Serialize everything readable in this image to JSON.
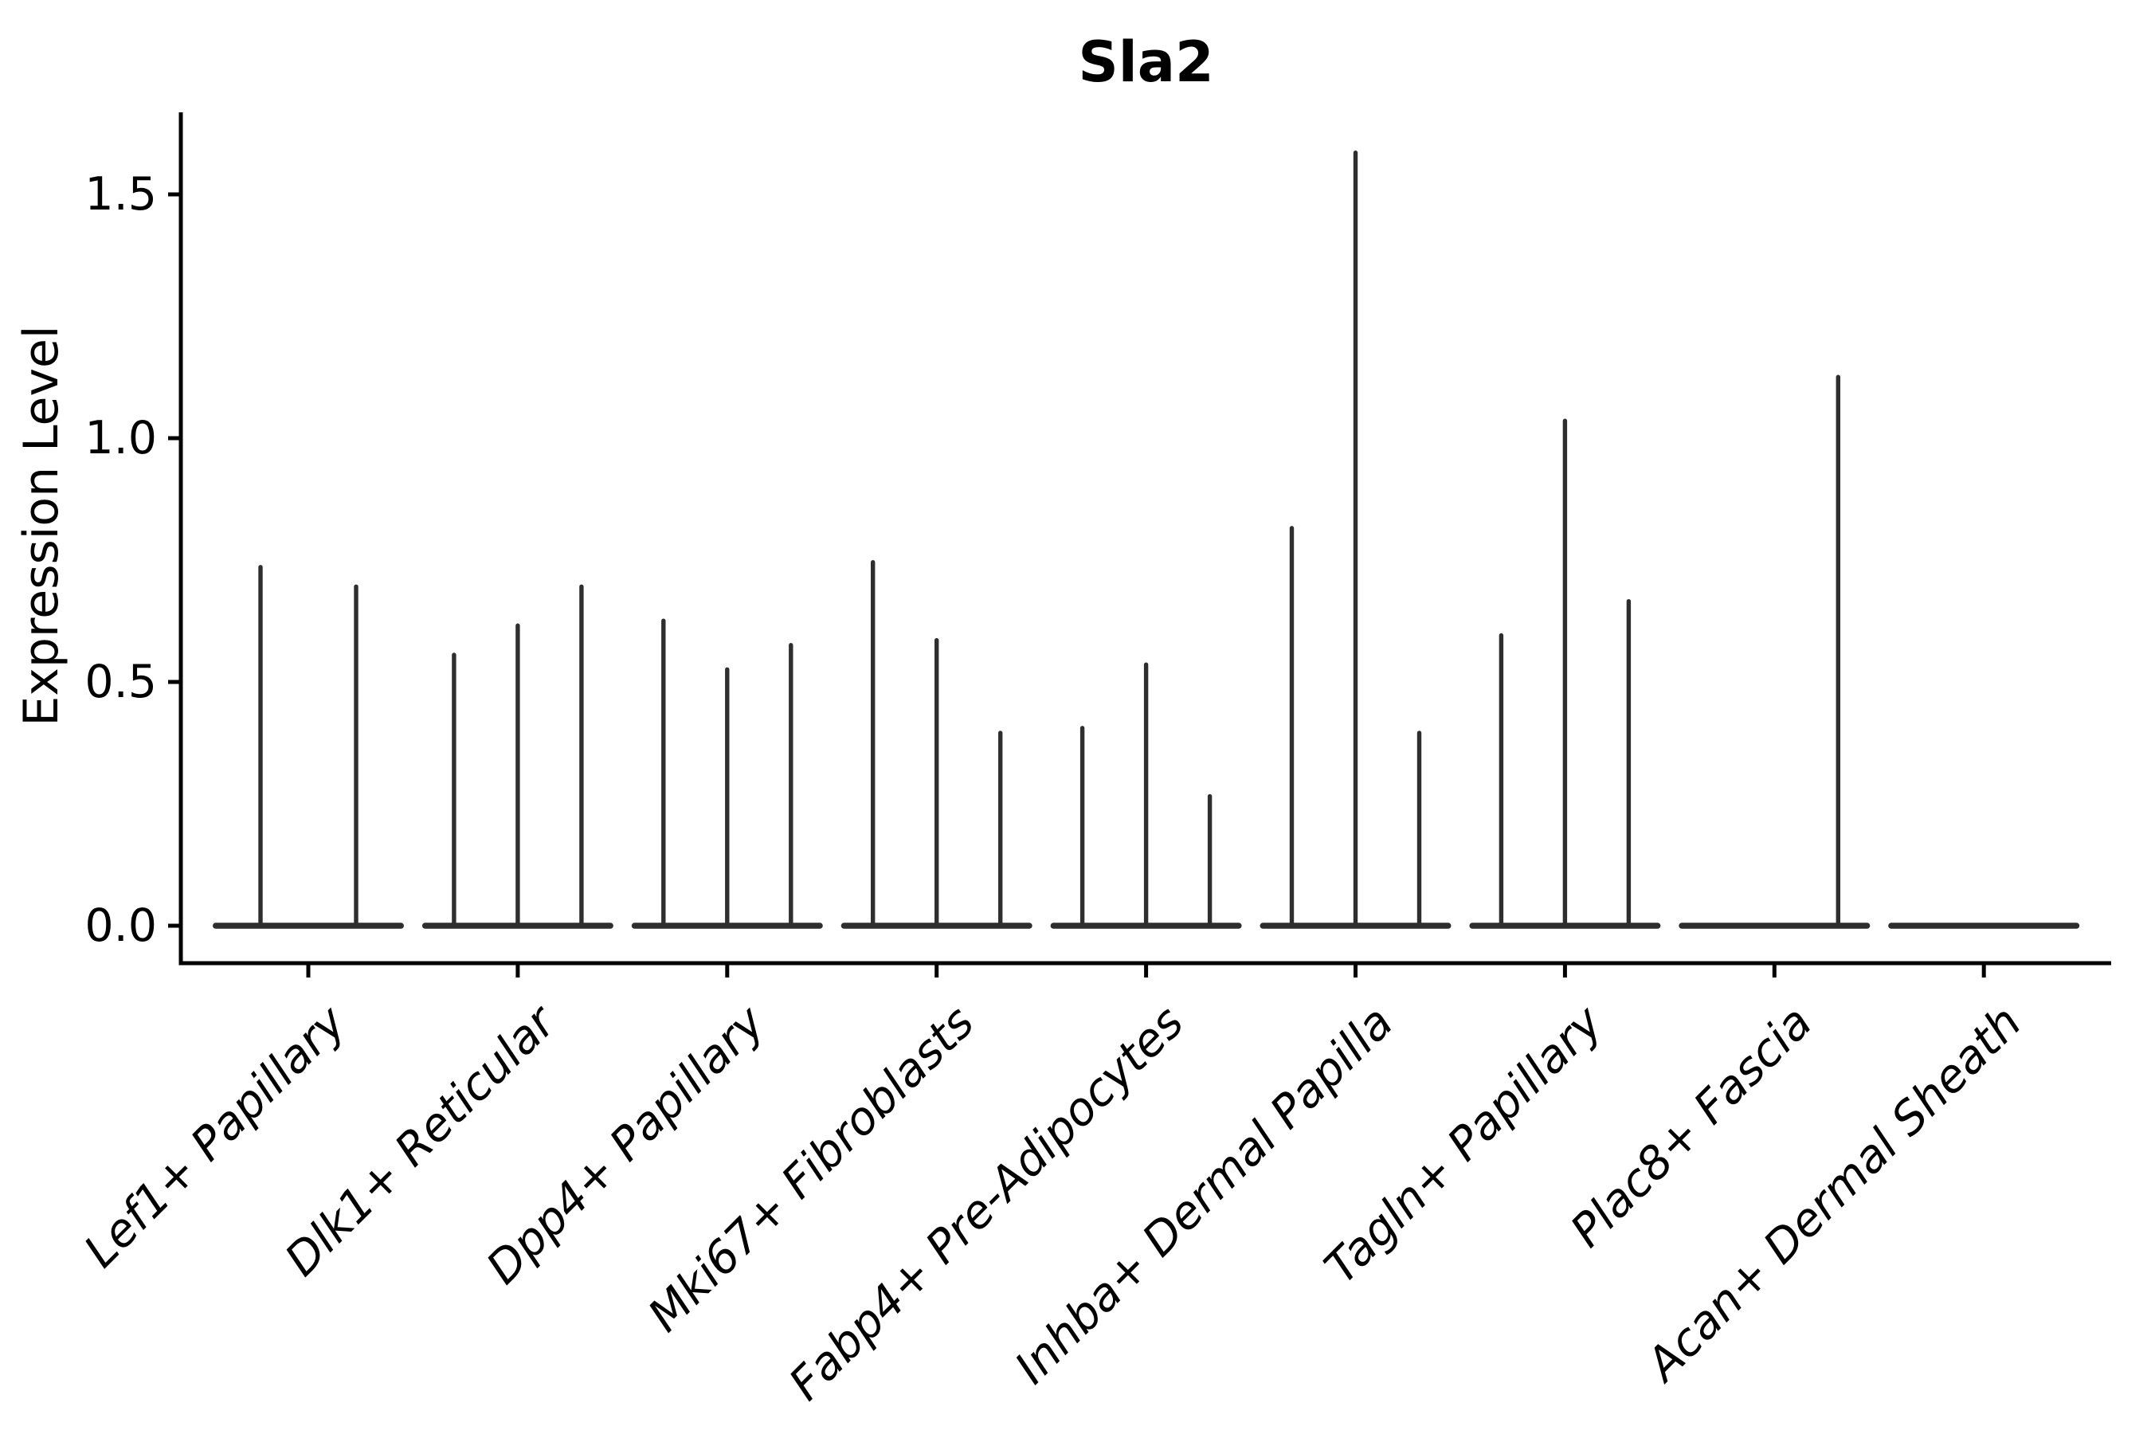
{
  "chart_data": {
    "type": "violin",
    "title": "Sla2",
    "xlabel": "",
    "ylabel": "Expression Level",
    "ytick_labels": [
      "0.0",
      "0.5",
      "1.0",
      "1.5"
    ],
    "ytick_values": [
      0,
      0.5,
      1.0,
      1.5
    ],
    "ylim": [
      -0.08,
      1.67
    ],
    "grid": false,
    "legend_position": "none",
    "x_label_rotation_deg": 45,
    "x_label_style": "italic",
    "categories": [
      "Lef1+ Papillary",
      "Dlk1+ Reticular",
      "Dpp4+ Papillary",
      "Mki67+ Fibroblasts",
      "Fabp4+ Pre-Adipocytes",
      "Inhba+ Dermal Papilla",
      "Tagln+ Papillary",
      "Plac8+ Fascia",
      "Acan+ Dermal Sheath"
    ],
    "groups": [
      {
        "category": "Lef1+ Papillary",
        "violin_maxima": [
          0.74,
          0.7
        ]
      },
      {
        "category": "Dlk1+ Reticular",
        "violin_maxima": [
          0.56,
          0.62,
          0.7
        ]
      },
      {
        "category": "Dpp4+ Papillary",
        "violin_maxima": [
          0.63,
          0.53,
          0.58
        ]
      },
      {
        "category": "Mki67+ Fibroblasts",
        "violin_maxima": [
          0.75,
          0.59,
          0.4
        ]
      },
      {
        "category": "Fabp4+ Pre-Adipocytes",
        "violin_maxima": [
          0.41,
          0.54,
          0.27
        ]
      },
      {
        "category": "Inhba+ Dermal Papilla",
        "violin_maxima": [
          0.82,
          1.59,
          0.4
        ]
      },
      {
        "category": "Tagln+ Papillary",
        "violin_maxima": [
          0.6,
          1.04,
          0.67
        ]
      },
      {
        "category": "Plac8+ Fascia",
        "violin_maxima": [
          0,
          0,
          1.13
        ]
      },
      {
        "category": "Acan+ Dermal Sheath",
        "violin_maxima": [
          0,
          0,
          0
        ]
      }
    ],
    "violin_shape_note": "Each violin is collapsed to a flat wide base at expression 0 with a thin vertical spike up to its maximum; groups with fewer violins keep the same total base width.",
    "colors": {
      "violin": "#2e2e2e",
      "axis": "#000000",
      "text": "#000000",
      "background": "#ffffff"
    }
  }
}
